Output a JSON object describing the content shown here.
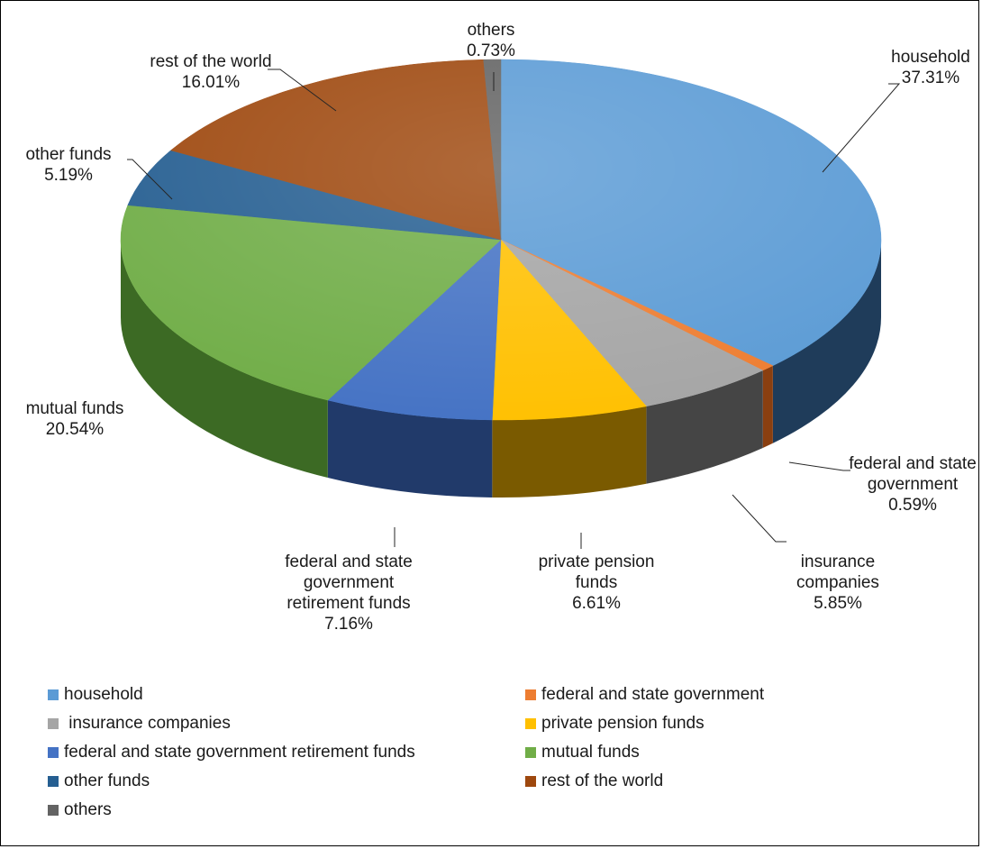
{
  "chart_data": {
    "type": "pie",
    "title": "",
    "slices": [
      {
        "name": "household",
        "legend": "household",
        "value_label": "37.31%",
        "value": 37.31,
        "color": "#5b9bd5",
        "side": "#1f3c5a",
        "label_lines": [
          "household"
        ]
      },
      {
        "name": "federal and state government",
        "legend": "federal and state government",
        "value_label": "0.59%",
        "value": 0.59,
        "color": "#ed7d31",
        "side": "#8a3f10",
        "label_lines": [
          "federal and state",
          "government"
        ]
      },
      {
        "name": "insurance companies",
        "legend": " insurance companies",
        "value_label": "5.85%",
        "value": 5.85,
        "color": "#a5a5a5",
        "side": "#454545",
        "label_lines": [
          "insurance",
          "companies"
        ]
      },
      {
        "name": "private pension funds",
        "legend": "private pension funds",
        "value_label": "6.61%",
        "value": 6.61,
        "color": "#ffc000",
        "side": "#7a5a00",
        "label_lines": [
          "private pension",
          "funds"
        ]
      },
      {
        "name": "federal and state government retirement funds",
        "legend": "federal and state government retirement funds",
        "value_label": "7.16%",
        "value": 7.16,
        "color": "#4472c4",
        "side": "#213a6a",
        "label_lines": [
          "federal and state",
          "government",
          "retirement funds"
        ]
      },
      {
        "name": "mutual funds",
        "legend": "mutual funds",
        "value_label": "20.54%",
        "value": 20.54,
        "color": "#70ad47",
        "side": "#3c6a24",
        "label_lines": [
          "mutual funds"
        ]
      },
      {
        "name": "other funds",
        "legend": "other funds",
        "value_label": "5.19%",
        "value": 5.19,
        "color": "#255e91",
        "side": "#143352",
        "label_lines": [
          "other funds"
        ]
      },
      {
        "name": "rest of the world",
        "legend": "rest of the world",
        "value_label": "16.01%",
        "value": 16.01,
        "color": "#9e480e",
        "side": "#5a2806",
        "label_lines": [
          "rest of the world"
        ]
      },
      {
        "name": "others",
        "legend": "others",
        "value_label": "0.73%",
        "value": 0.73,
        "color": "#636363",
        "side": "#333333",
        "label_lines": [
          "others"
        ]
      }
    ],
    "legend_placement": "bottom"
  }
}
